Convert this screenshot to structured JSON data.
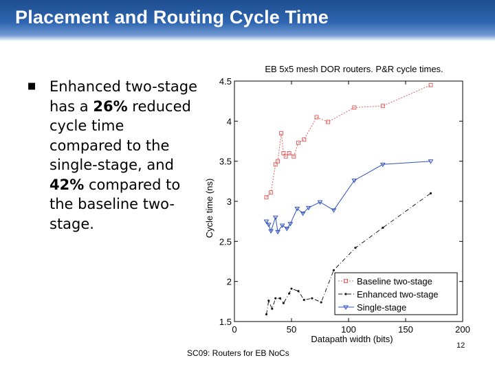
{
  "slide": {
    "title": "Placement and Routing Cycle Time",
    "bullet": {
      "part1": "Enhanced two-stage has a ",
      "highlight1": "26%",
      "part2": " reduced cycle time compared to the single-stage, and ",
      "highlight2": "42%",
      "part3": " compared to the baseline two-stage."
    },
    "footer": "SC09: Routers for EB NoCs",
    "page_number": "12"
  },
  "chart_data": {
    "type": "line",
    "title": "EB 5x5 mesh DOR routers. P&R cycle times.",
    "xlabel": "Datapath width (bits)",
    "ylabel": "Cycle time (ns)",
    "xlim": [
      0,
      200
    ],
    "ylim": [
      1.5,
      4.5
    ],
    "xticks": [
      0,
      50,
      100,
      150,
      200
    ],
    "yticks": [
      1.5,
      2,
      2.5,
      3,
      3.5,
      4,
      4.5
    ],
    "grid": false,
    "legend_position": "bottom-right",
    "series": [
      {
        "name": "Baseline two-stage",
        "color": "#e06060",
        "marker": "square",
        "dash": "2,2",
        "points": [
          [
            28,
            3.05
          ],
          [
            32,
            3.11
          ],
          [
            36,
            3.46
          ],
          [
            38,
            3.5
          ],
          [
            41,
            3.85
          ],
          [
            43,
            3.6
          ],
          [
            45,
            3.56
          ],
          [
            48,
            3.6
          ],
          [
            52,
            3.56
          ],
          [
            56,
            3.73
          ],
          [
            61,
            3.77
          ],
          [
            72,
            4.05
          ],
          [
            82,
            3.99
          ],
          [
            105,
            4.17
          ],
          [
            130,
            4.19
          ],
          [
            172,
            4.45
          ]
        ]
      },
      {
        "name": "Enhanced two-stage",
        "color": "#1a1a1a",
        "marker": "dot",
        "dash": "6,3,1,3",
        "points": [
          [
            28,
            1.59
          ],
          [
            30,
            1.76
          ],
          [
            33,
            1.66
          ],
          [
            36,
            1.79
          ],
          [
            40,
            1.79
          ],
          [
            43,
            1.73
          ],
          [
            48,
            1.85
          ],
          [
            50,
            1.91
          ],
          [
            56,
            1.88
          ],
          [
            61,
            1.77
          ],
          [
            68,
            1.79
          ],
          [
            76,
            1.74
          ],
          [
            87,
            2.14
          ],
          [
            106,
            2.42
          ],
          [
            130,
            2.67
          ],
          [
            172,
            3.1
          ]
        ]
      },
      {
        "name": "Single-stage",
        "color": "#3050c0",
        "marker": "triangle-down",
        "dash": "",
        "points": [
          [
            28,
            2.75
          ],
          [
            30,
            2.71
          ],
          [
            32,
            2.63
          ],
          [
            36,
            2.8
          ],
          [
            38,
            2.62
          ],
          [
            42,
            2.7
          ],
          [
            46,
            2.66
          ],
          [
            49,
            2.72
          ],
          [
            55,
            2.91
          ],
          [
            60,
            2.85
          ],
          [
            65,
            2.92
          ],
          [
            75,
            2.99
          ],
          [
            87,
            2.89
          ],
          [
            105,
            3.26
          ],
          [
            130,
            3.46
          ],
          [
            172,
            3.5
          ]
        ]
      }
    ]
  }
}
